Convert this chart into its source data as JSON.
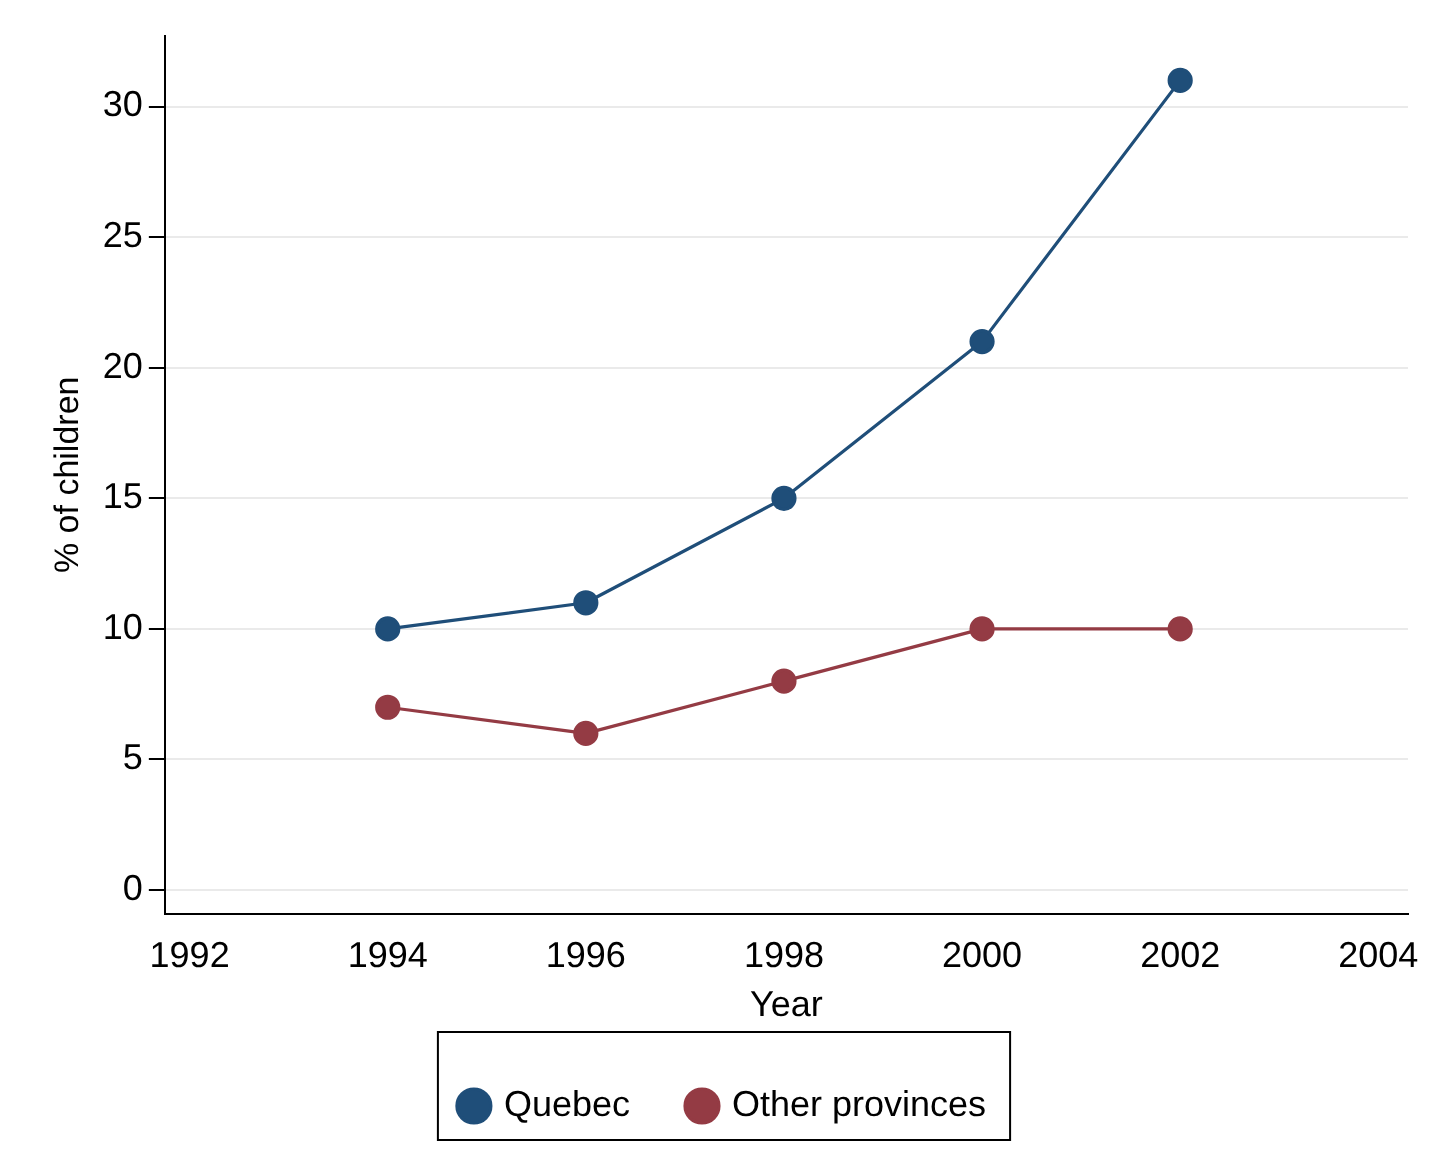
{
  "chart_data": {
    "type": "line",
    "xlabel": "Year",
    "ylabel": "% of children",
    "x": [
      1994,
      1996,
      1998,
      2000,
      2002
    ],
    "series": [
      {
        "name": "Quebec",
        "color": "#1f4e79",
        "values": [
          10,
          11,
          15,
          21,
          31
        ]
      },
      {
        "name": "Other provinces",
        "color": "#943b44",
        "values": [
          7,
          6,
          8,
          10,
          10
        ]
      }
    ],
    "xlim": [
      1991.75,
      2004.3
    ],
    "xticks": [
      1992,
      1994,
      1996,
      1998,
      2000,
      2002,
      2004
    ],
    "ylim": [
      -0.9,
      32.7
    ],
    "yticks": [
      0,
      5,
      10,
      15,
      20,
      25,
      30
    ],
    "grid": "y",
    "legend": "bottom",
    "marker": "circle",
    "line_style": "solid"
  }
}
